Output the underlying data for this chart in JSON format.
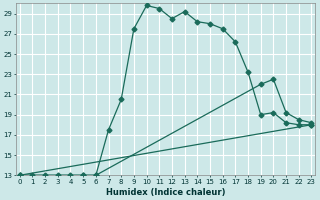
{
  "title": "",
  "xlabel": "Humidex (Indice chaleur)",
  "bg_color": "#cde8e8",
  "grid_color": "#ffffff",
  "line_color": "#1a6b5a",
  "xlim": [
    0,
    23
  ],
  "ylim": [
    13,
    30
  ],
  "xticks": [
    0,
    1,
    2,
    3,
    4,
    5,
    6,
    7,
    8,
    9,
    10,
    11,
    12,
    13,
    14,
    15,
    16,
    17,
    18,
    19,
    20,
    21,
    22,
    23
  ],
  "yticks": [
    13,
    15,
    17,
    19,
    21,
    23,
    25,
    27,
    29
  ],
  "line1_x": [
    0,
    1,
    2,
    3,
    4,
    5,
    6,
    7,
    8,
    9,
    10,
    11,
    12,
    13,
    14,
    15,
    16,
    17,
    18,
    19,
    20,
    21,
    22,
    23
  ],
  "line1_y": [
    13,
    13,
    13,
    13,
    13,
    13,
    13,
    17.5,
    20.5,
    27.5,
    29.8,
    29.5,
    28.5,
    29.2,
    28.2,
    28.0,
    27.5,
    26.2,
    23.2,
    19.0,
    19.2,
    18.2,
    18.0,
    18.0
  ],
  "line2_x": [
    0,
    5,
    6,
    19,
    20,
    21,
    22,
    23
  ],
  "line2_y": [
    13,
    13,
    13,
    22,
    22.5,
    19.2,
    18.5,
    18.2
  ],
  "line3_x": [
    0,
    23
  ],
  "line3_y": [
    13,
    18
  ]
}
